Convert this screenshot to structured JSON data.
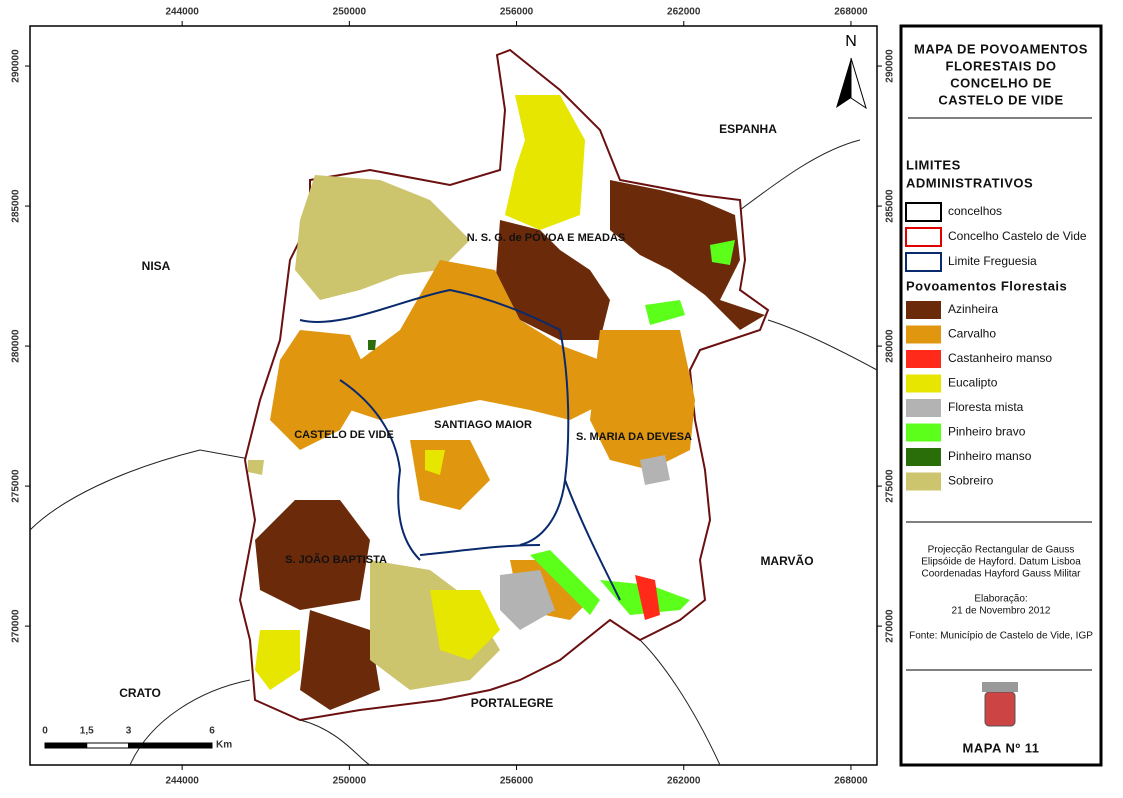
{
  "map": {
    "xlim": [
      238540,
      268935
    ],
    "ylim": [
      265040,
      291430
    ],
    "xticks": [
      244000,
      250000,
      256000,
      262000,
      268000
    ],
    "yticks": [
      290000,
      285000,
      280000,
      275000,
      270000
    ],
    "north": "N",
    "labels": [
      "ESPANHA",
      "NISA",
      "CRATO",
      "PORTALEGRE",
      "MARVÃO",
      "N. S. G. de PÓVOA E MEADAS",
      "CASTELO DE VIDE",
      "SANTIAGO MAIOR",
      "S. MARIA DA DEVESA",
      "S. JOÃO BAPTISTA"
    ],
    "scale": {
      "ticks": [
        0,
        {
          "value": 1.5,
          "label": "1,5"
        },
        3,
        6
      ],
      "unit": "Km"
    }
  },
  "legend": {
    "title": [
      "MAPA DE POVOAMENTOS",
      "FLORESTAIS DO",
      "CONCELHO DE",
      "CASTELO DE VIDE"
    ],
    "limits_heading": [
      "LIMITES",
      "ADMINISTRATIVOS"
    ],
    "limits": [
      {
        "name": "concelhos",
        "color": "#000000"
      },
      {
        "name": "Concelho Castelo de Vide",
        "color": "#e00000"
      },
      {
        "name": "Limite Freguesia",
        "color": "#0a2a6e"
      }
    ],
    "forest_heading": "Povoamentos Florestais",
    "forest": [
      {
        "name": "Azinheira",
        "color": "#6b2a0a"
      },
      {
        "name": "Carvalho",
        "color": "#e0960f"
      },
      {
        "name": "Castanheiro manso",
        "color": "#ff2a1a"
      },
      {
        "name": "Eucalipto",
        "color": "#e6e600"
      },
      {
        "name": "Floresta mista",
        "color": "#b3b3b3"
      },
      {
        "name": "Pinheiro bravo",
        "color": "#5cff1a"
      },
      {
        "name": "Pinheiro manso",
        "color": "#2a6e0a"
      },
      {
        "name": "Sobreiro",
        "color": "#cdc56e"
      }
    ],
    "notes": [
      "Projecção Rectangular de Gauss",
      "Elipsóide de Hayford. Datum Lisboa",
      "Coordenadas Hayford Gauss Militar"
    ],
    "elaboration": [
      "Elaboração:",
      "21 de Novembro 2012"
    ],
    "source": "Fonte: Município de Castelo de Vide, IGP",
    "map_number": "MAPA Nº 11"
  }
}
